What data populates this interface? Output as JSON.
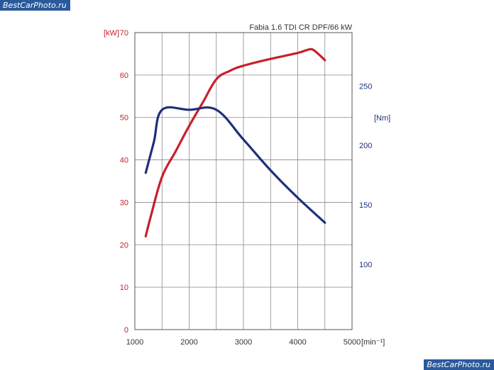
{
  "watermarks": {
    "top_left": "BestCarPhoto.ru",
    "bottom_right": "BestCarPhoto.ru"
  },
  "colors": {
    "power": "#c8202a",
    "torque": "#1f2f7a",
    "grid": "#8a8a8a"
  },
  "chart_data": {
    "type": "line",
    "title": "Fabia 1.6 TDI CR DPF/66 kW",
    "xlabel": "[min⁻¹]",
    "xlim": [
      1000,
      5000
    ],
    "x_ticks": [
      1000,
      2000,
      3000,
      4000,
      5000
    ],
    "y_left": {
      "label": "[kW]",
      "ylim": [
        0,
        70
      ],
      "ticks": [
        0,
        10,
        20,
        30,
        40,
        50,
        60,
        70
      ]
    },
    "y_right": {
      "label": "[Nm]",
      "ticks": [
        100,
        150,
        200,
        250
      ],
      "range": [
        45,
        295
      ]
    },
    "grid": true,
    "series": [
      {
        "axis": "left",
        "color": "#c8202a",
        "points": [
          [
            1200,
            22
          ],
          [
            1300,
            27
          ],
          [
            1500,
            36
          ],
          [
            1750,
            42
          ],
          [
            2000,
            48
          ],
          [
            2250,
            53.5
          ],
          [
            2500,
            59
          ],
          [
            2750,
            61
          ],
          [
            3000,
            62.2
          ],
          [
            3500,
            63.8
          ],
          [
            4000,
            65.2
          ],
          [
            4200,
            66
          ],
          [
            4300,
            65.8
          ],
          [
            4500,
            63.5
          ]
        ]
      },
      {
        "axis": "right",
        "color": "#1f2f7a",
        "points": [
          [
            1200,
            177
          ],
          [
            1350,
            203
          ],
          [
            1500,
            230
          ],
          [
            2000,
            230
          ],
          [
            2500,
            230
          ],
          [
            3000,
            205
          ],
          [
            3500,
            179
          ],
          [
            4000,
            156
          ],
          [
            4500,
            135
          ]
        ]
      }
    ]
  }
}
